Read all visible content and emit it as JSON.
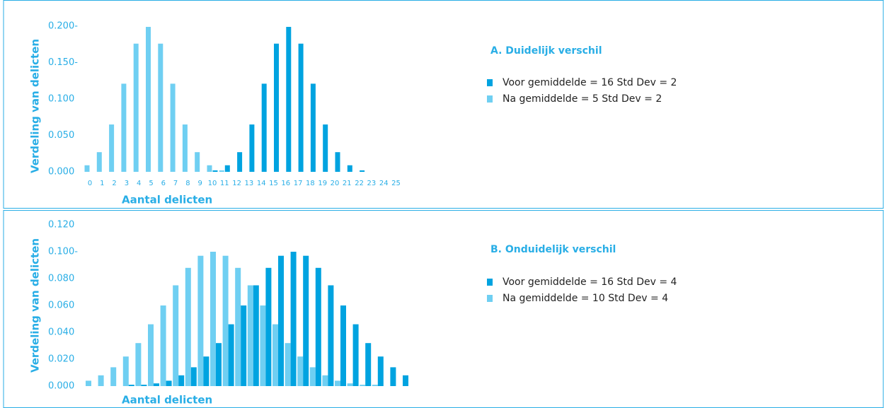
{
  "chart_data": [
    {
      "type": "bar",
      "title": "A. Duidelijk verschil",
      "x_label": "Aantal delicten",
      "y_label": "Verdeling van delicten",
      "categories": [
        "0",
        "1",
        "2",
        "3",
        "4",
        "5",
        "6",
        "7",
        "8",
        "9",
        "10",
        "11",
        "12",
        "13",
        "14",
        "15",
        "16",
        "17",
        "18",
        "19",
        "20",
        "21",
        "22",
        "23",
        "24",
        "25"
      ],
      "series": [
        {
          "name": "Voor gemiddelde = 16 Std Dev = 2",
          "color": "#00a3e0",
          "values": [
            0,
            0,
            0,
            0,
            0,
            0,
            0,
            0,
            0,
            0,
            0.002,
            0.009,
            0.027,
            0.065,
            0.121,
            0.176,
            0.199,
            0.176,
            0.121,
            0.065,
            0.027,
            0.009,
            0.002,
            0,
            0,
            0
          ]
        },
        {
          "name": "Na gemiddelde = 5 Std Dev = 2",
          "color": "#6fcff2",
          "values": [
            0.009,
            0.027,
            0.065,
            0.121,
            0.176,
            0.199,
            0.176,
            0.121,
            0.065,
            0.027,
            0.009,
            0.002,
            0,
            0,
            0,
            0,
            0,
            0,
            0,
            0,
            0,
            0,
            0,
            0,
            0,
            0
          ]
        }
      ],
      "ylim": [
        0,
        0.2
      ],
      "yticks": [
        {
          "value": 0,
          "label": "0.000"
        },
        {
          "value": 0.05,
          "label": "0.050"
        },
        {
          "value": 0.1,
          "label": "0.100"
        },
        {
          "value": 0.15,
          "label": "0.150-"
        },
        {
          "value": 0.2,
          "label": "0.200-"
        }
      ]
    },
    {
      "type": "bar",
      "title": "B. Onduidelijk verschil",
      "x_label": "Aantal delicten",
      "y_label": "Verdeling van delicten",
      "categories": [
        null,
        null,
        null,
        null,
        null,
        null,
        null,
        null,
        null,
        null,
        null,
        null,
        null,
        null,
        null,
        null,
        null,
        null,
        null,
        null,
        null,
        null,
        null,
        null,
        null,
        null
      ],
      "series": [
        {
          "name": "Voor gemiddelde = 16 Std Dev = 4",
          "color": "#00a3e0",
          "values": [
            0,
            0,
            0,
            0.001,
            0.001,
            0.002,
            0.004,
            0.008,
            0.014,
            0.022,
            0.032,
            0.046,
            0.06,
            0.075,
            0.088,
            0.097,
            0.1,
            0.097,
            0.088,
            0.075,
            0.06,
            0.046,
            0.032,
            0.022,
            0.014,
            0.008
          ]
        },
        {
          "name": "Na gemiddelde = 10 Std Dev = 4",
          "color": "#6fcff2",
          "values": [
            0.004,
            0.008,
            0.014,
            0.022,
            0.032,
            0.046,
            0.06,
            0.075,
            0.088,
            0.097,
            0.1,
            0.097,
            0.088,
            0.075,
            0.06,
            0.046,
            0.032,
            0.022,
            0.014,
            0.008,
            0.004,
            0.002,
            0.001,
            0.001,
            0,
            0
          ]
        }
      ],
      "ylim": [
        0,
        0.12
      ],
      "yticks": [
        {
          "value": 0,
          "label": "0.000"
        },
        {
          "value": 0.02,
          "label": "0.020"
        },
        {
          "value": 0.04,
          "label": "0.040"
        },
        {
          "value": 0.06,
          "label": "0.060"
        },
        {
          "value": 0.08,
          "label": "0.080"
        },
        {
          "value": 0.1,
          "label": "0.100-"
        },
        {
          "value": 0.12,
          "label": "0.120"
        }
      ]
    }
  ]
}
